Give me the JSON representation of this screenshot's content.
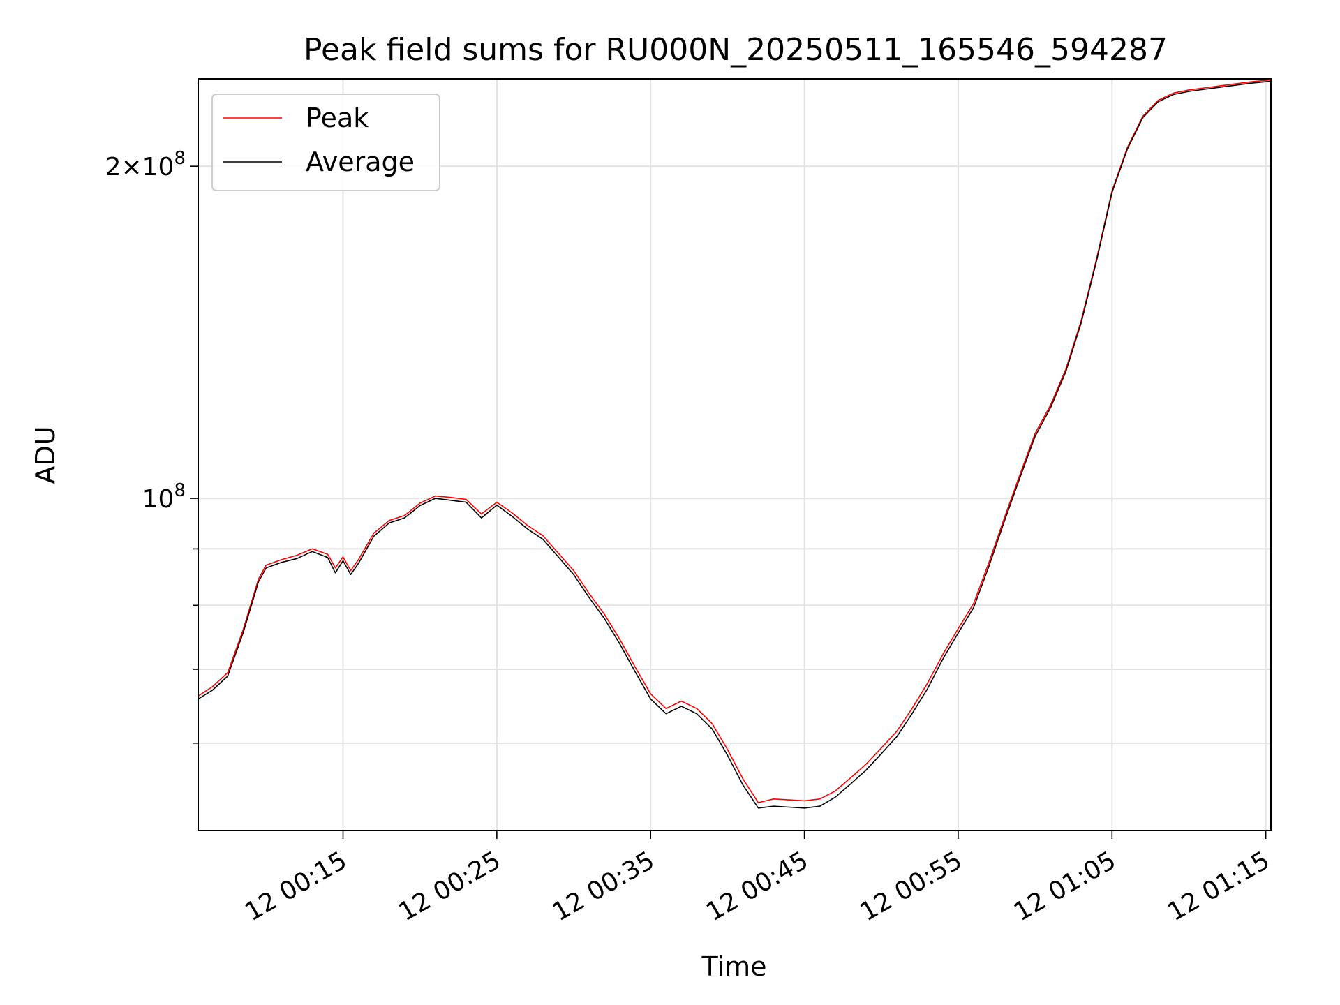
{
  "chart_data": {
    "type": "line",
    "title": "Peak field sums for RU000N_20250511_165546_594287",
    "xlabel": "Time",
    "ylabel": "ADU",
    "y_scale": "log",
    "grid": true,
    "legend_position": "top-left",
    "x_range": [
      "00:05:35",
      "01:15:20"
    ],
    "y_range": [
      50000000,
      240000000
    ],
    "x_ticks": [
      "12 00:15",
      "12 00:25",
      "12 00:35",
      "12 00:45",
      "12 00:55",
      "12 01:05",
      "12 01:15"
    ],
    "x_tick_times": [
      "00:15:00",
      "00:25:00",
      "00:35:00",
      "00:45:00",
      "00:55:00",
      "01:05:00",
      "01:15:00"
    ],
    "y_major_ticks": [
      {
        "value": 100000000,
        "base": "10",
        "exp": "8"
      },
      {
        "value": 200000000,
        "base": "2×10",
        "exp": "8"
      }
    ],
    "y_minor_ticks": [
      60000000,
      70000000,
      80000000,
      90000000
    ],
    "series": [
      {
        "name": "Peak",
        "color": "#ff0000",
        "time": [
          "00:05:35",
          "00:06:30",
          "00:07:30",
          "00:08:30",
          "00:09:30",
          "00:10:00",
          "00:11:00",
          "00:12:00",
          "00:13:00",
          "00:14:00",
          "00:14:30",
          "00:15:00",
          "00:15:30",
          "00:16:00",
          "00:17:00",
          "00:18:00",
          "00:19:00",
          "00:20:00",
          "00:21:00",
          "00:22:00",
          "00:23:00",
          "00:24:00",
          "00:25:00",
          "00:26:00",
          "00:27:00",
          "00:28:00",
          "00:29:00",
          "00:30:00",
          "00:31:00",
          "00:32:00",
          "00:33:00",
          "00:34:00",
          "00:35:00",
          "00:36:00",
          "00:37:00",
          "00:38:00",
          "00:39:00",
          "00:40:00",
          "00:41:00",
          "00:42:00",
          "00:43:00",
          "00:44:00",
          "00:45:00",
          "00:46:00",
          "00:47:00",
          "00:48:00",
          "00:49:00",
          "00:50:00",
          "00:51:00",
          "00:52:00",
          "00:53:00",
          "00:54:00",
          "00:55:00",
          "00:56:00",
          "00:57:00",
          "00:58:00",
          "00:59:00",
          "01:00:00",
          "01:01:00",
          "01:02:00",
          "01:03:00",
          "01:04:00",
          "01:05:00",
          "01:06:00",
          "01:07:00",
          "01:08:00",
          "01:09:00",
          "01:10:00",
          "01:11:00",
          "01:12:00",
          "01:13:00",
          "01:14:00",
          "01:15:20"
        ],
        "values": [
          66200000,
          67500000,
          69500000,
          76000000,
          84500000,
          87000000,
          88000000,
          88800000,
          90000000,
          89000000,
          86500000,
          88500000,
          86000000,
          88000000,
          93000000,
          95500000,
          96500000,
          99000000,
          100500000,
          100200000,
          99800000,
          96800000,
          99200000,
          97000000,
          94500000,
          92500000,
          89200000,
          86000000,
          82000000,
          78500000,
          74500000,
          70300000,
          66500000,
          64500000,
          65500000,
          64500000,
          62500000,
          59200000,
          55700000,
          53000000,
          53400000,
          53300000,
          53200000,
          53400000,
          54300000,
          55800000,
          57400000,
          59400000,
          61500000,
          64500000,
          68000000,
          72200000,
          76200000,
          80300000,
          87500000,
          96000000,
          105000000,
          114500000,
          121500000,
          131000000,
          145000000,
          165000000,
          190000000,
          208000000,
          222000000,
          229500000,
          233000000,
          234500000,
          235500000,
          236500000,
          237500000,
          238500000,
          239500000
        ]
      },
      {
        "name": "Average",
        "color": "#000000",
        "time": [
          "00:05:35",
          "00:06:30",
          "00:07:30",
          "00:08:30",
          "00:09:30",
          "00:10:00",
          "00:11:00",
          "00:12:00",
          "00:13:00",
          "00:14:00",
          "00:14:30",
          "00:15:00",
          "00:15:30",
          "00:16:00",
          "00:17:00",
          "00:18:00",
          "00:19:00",
          "00:20:00",
          "00:21:00",
          "00:22:00",
          "00:23:00",
          "00:24:00",
          "00:25:00",
          "00:26:00",
          "00:27:00",
          "00:28:00",
          "00:29:00",
          "00:30:00",
          "00:31:00",
          "00:32:00",
          "00:33:00",
          "00:34:00",
          "00:35:00",
          "00:36:00",
          "00:37:00",
          "00:38:00",
          "00:39:00",
          "00:40:00",
          "00:41:00",
          "00:42:00",
          "00:43:00",
          "00:44:00",
          "00:45:00",
          "00:46:00",
          "00:47:00",
          "00:48:00",
          "00:49:00",
          "00:50:00",
          "00:51:00",
          "00:52:00",
          "00:53:00",
          "00:54:00",
          "00:55:00",
          "00:56:00",
          "00:57:00",
          "00:58:00",
          "00:59:00",
          "01:00:00",
          "01:01:00",
          "01:02:00",
          "01:03:00",
          "01:04:00",
          "01:05:00",
          "01:06:00",
          "01:07:00",
          "01:08:00",
          "01:09:00",
          "01:10:00",
          "01:11:00",
          "01:12:00",
          "01:13:00",
          "01:14:00",
          "01:15:20"
        ],
        "values": [
          65800000,
          67000000,
          69000000,
          75500000,
          84000000,
          86500000,
          87500000,
          88200000,
          89500000,
          88400000,
          85600000,
          87800000,
          85300000,
          87300000,
          92400000,
          95000000,
          96000000,
          98500000,
          100000000,
          99600000,
          99200000,
          96000000,
          98600000,
          96300000,
          93800000,
          91800000,
          88500000,
          85300000,
          81300000,
          77800000,
          73800000,
          69600000,
          65800000,
          63800000,
          64800000,
          63800000,
          61800000,
          58500000,
          55000000,
          52400000,
          52600000,
          52500000,
          52400000,
          52600000,
          53600000,
          55100000,
          56700000,
          58700000,
          60800000,
          63800000,
          67200000,
          71500000,
          75500000,
          79600000,
          86800000,
          95300000,
          104300000,
          113800000,
          120800000,
          130300000,
          144300000,
          164300000,
          189300000,
          207300000,
          221300000,
          228800000,
          232300000,
          233800000,
          234800000,
          235800000,
          236800000,
          237800000,
          238800000
        ]
      }
    ]
  }
}
